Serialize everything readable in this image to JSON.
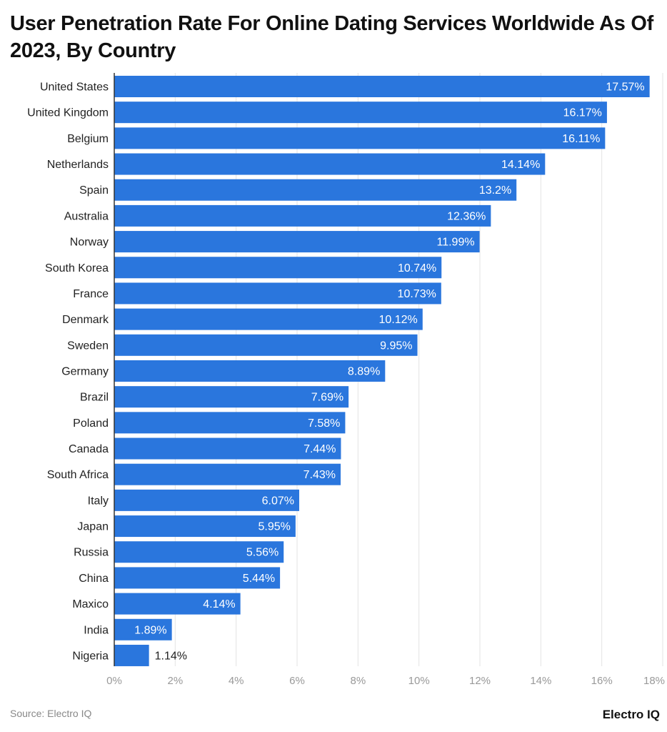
{
  "chart_data": {
    "type": "bar",
    "orientation": "horizontal",
    "title": "User Penetration Rate For Online Dating Services Worldwide As Of 2023, By Country",
    "categories": [
      "United States",
      "United Kingdom",
      "Belgium",
      "Netherlands",
      "Spain",
      "Australia",
      "Norway",
      "South Korea",
      "France",
      "Denmark",
      "Sweden",
      "Germany",
      "Brazil",
      "Poland",
      "Canada",
      "South Africa",
      "Italy",
      "Japan",
      "Russia",
      "China",
      "Maxico",
      "India",
      "Nigeria"
    ],
    "values": [
      17.57,
      16.17,
      16.11,
      14.14,
      13.2,
      12.36,
      11.99,
      10.74,
      10.73,
      10.12,
      9.95,
      8.89,
      7.69,
      7.58,
      7.44,
      7.43,
      6.07,
      5.95,
      5.56,
      5.44,
      4.14,
      1.89,
      1.14
    ],
    "data_labels": [
      "17.57%",
      "16.17%",
      "16.11%",
      "14.14%",
      "13.2%",
      "12.36%",
      "11.99%",
      "10.74%",
      "10.73%",
      "10.12%",
      "9.95%",
      "8.89%",
      "7.69%",
      "7.58%",
      "7.44%",
      "7.43%",
      "6.07%",
      "5.95%",
      "5.56%",
      "5.44%",
      "4.14%",
      "1.89%",
      "1.14%"
    ],
    "xticks": [
      "0%",
      "2%",
      "4%",
      "6%",
      "8%",
      "10%",
      "12%",
      "14%",
      "16%",
      "18%"
    ],
    "xlim": [
      0,
      18
    ],
    "grid": "vertical",
    "bar_color": "#2a76dd"
  },
  "footer": {
    "source": "Source: Electro IQ",
    "brand": "Electro IQ"
  }
}
